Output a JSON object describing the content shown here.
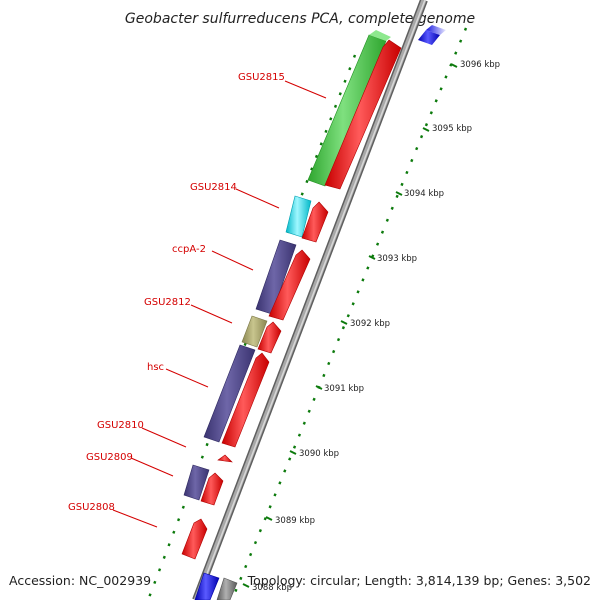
{
  "title": "Geobacter sulfurreducens PCA, complete genome",
  "footer": {
    "accession": "Accession: NC_002939",
    "topology": "Topology: circular; Length: 3,814,139 bp; Genes: 3,502"
  },
  "colors": {
    "backbone": "#8c8c8c",
    "tick": "#0c7a0c",
    "label": "#d40000",
    "forward_gene": "#ff0000",
    "reverse_green": "#39cc39",
    "reverse_cyan": "#00e5f2",
    "reverse_purple": "#4d448a",
    "reverse_olive": "#a9a56d",
    "blue": "#1010e0",
    "gray_gene": "#808080"
  },
  "kbp_ticks": [
    "3096 kbp",
    "3095 kbp",
    "3094 kbp",
    "3093 kbp",
    "3092 kbp",
    "3091 kbp",
    "3090 kbp",
    "3089 kbp",
    "3088 kbp"
  ],
  "gene_labels": [
    "GSU2815",
    "GSU2814",
    "ccpA-2",
    "GSU2812",
    "hsc",
    "GSU2810",
    "GSU2809",
    "GSU2808"
  ]
}
